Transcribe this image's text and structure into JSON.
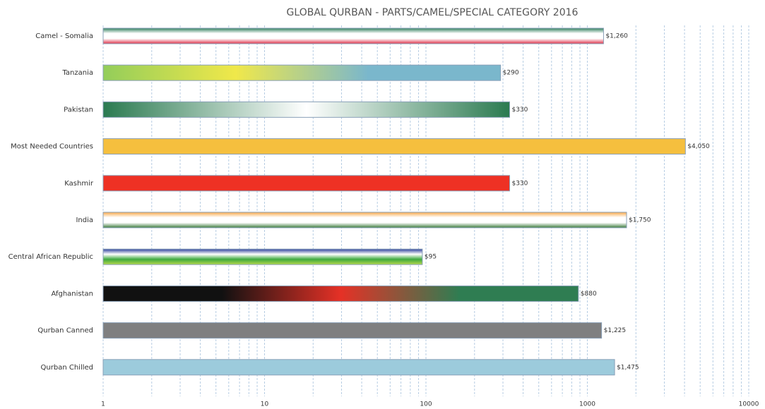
{
  "chart_data": {
    "type": "hbar",
    "title": "GLOBAL QURBAN - PARTS/CAMEL/SPECIAL CATEGORY 2016",
    "categories": [
      "Camel - Somalia",
      "Tanzania",
      "Pakistan",
      "Most Needed Countries",
      "Kashmir",
      "India",
      "Central African Republic",
      "Afghanistan",
      "Qurban  Canned",
      "Qurban  Chilled"
    ],
    "values": [
      1260,
      290,
      330,
      4050,
      330,
      1750,
      95,
      880,
      1225,
      1475
    ],
    "value_labels": [
      "$1,260",
      "$290",
      "$330",
      "$4,050",
      "$330",
      "$1,750",
      "$95",
      "$880",
      "$1,225",
      "$1,475"
    ],
    "colors": [
      [
        "#2e7d5b",
        "#ffffff",
        "#ffffff",
        "#e0334a"
      ],
      [
        "#93cd5a",
        "#f0e84a",
        "#7ab7cc",
        "#7ab7cc"
      ],
      [
        "#2a7a50",
        "#ffffff",
        "#2a7a50"
      ],
      [
        "#f5bf3e"
      ],
      [
        "#ee3124"
      ],
      [
        "#f7a94a",
        "#ffffff",
        "#ffffff",
        "#3a7a3a"
      ],
      [
        "#2a3e9a",
        "#ffffff",
        "#3fa93f",
        "#b5d94a"
      ],
      [
        "#111111",
        "#111111",
        "#e53126",
        "#2f7d52",
        "#2f7d52"
      ],
      [
        "#7f7f80"
      ],
      [
        "#9ccbdc"
      ]
    ],
    "gradient_directions": [
      "vertical",
      "horizontal",
      "horizontal",
      "vertical",
      "vertical",
      "vertical",
      "vertical",
      "horizontal",
      "vertical",
      "vertical"
    ],
    "xscale": "log",
    "xlim": [
      1,
      10000
    ],
    "xticks": [
      1,
      10,
      100,
      1000,
      10000
    ],
    "xticks_minor": [
      2,
      3,
      4,
      5,
      6,
      7,
      8,
      9,
      20,
      30,
      40,
      50,
      60,
      70,
      80,
      90,
      200,
      300,
      400,
      500,
      600,
      700,
      800,
      900,
      2000,
      3000,
      4000,
      5000,
      6000,
      7000,
      8000,
      9000
    ],
    "grid": true
  }
}
